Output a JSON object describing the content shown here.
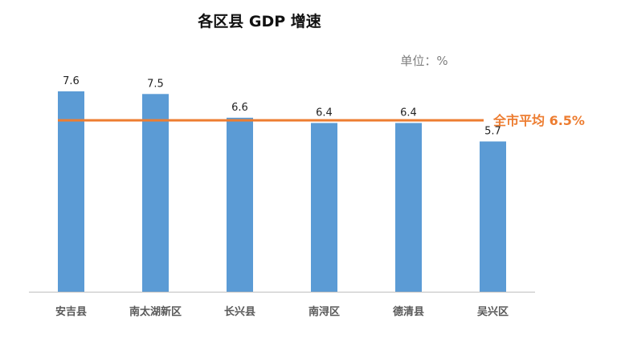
{
  "chart_data": {
    "type": "bar",
    "title": "各区县 GDP 增速",
    "unit_label": "单位：%",
    "categories": [
      "安吉县",
      "南太湖新区",
      "长兴县",
      "南浔区",
      "德清县",
      "吴兴区"
    ],
    "values": [
      7.6,
      7.5,
      6.6,
      6.4,
      6.4,
      5.7
    ],
    "value_labels": [
      "7.6",
      "7.5",
      "6.6",
      "6.4",
      "6.4",
      "5.7"
    ],
    "ylim": [
      0,
      8
    ],
    "grid": false,
    "reference_line": {
      "label": "全市平均 6.5%",
      "value": 6.5
    },
    "colors": {
      "bar": "#5B9BD5",
      "reference_line": "#ED7D31",
      "axis": "#BFBFBF"
    }
  }
}
